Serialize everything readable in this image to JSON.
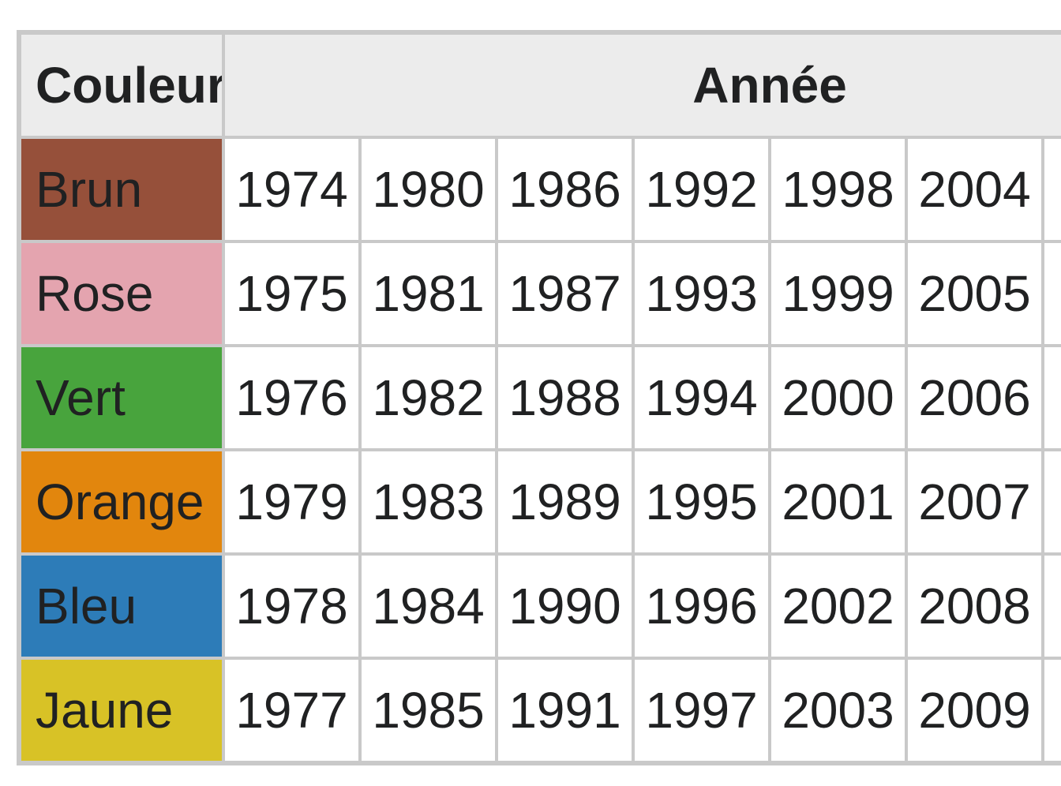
{
  "table": {
    "header": {
      "color_label": "Couleur",
      "year_label": "Année"
    },
    "rows": [
      {
        "name": "Brun",
        "color": "#96503a",
        "years": [
          "1974",
          "1980",
          "1986",
          "1992",
          "1998",
          "2004",
          "",
          ""
        ]
      },
      {
        "name": "Rose",
        "color": "#e4a4af",
        "years": [
          "1975",
          "1981",
          "1987",
          "1993",
          "1999",
          "2005",
          "",
          ""
        ]
      },
      {
        "name": "Vert",
        "color": "#48a43d",
        "years": [
          "1976",
          "1982",
          "1988",
          "1994",
          "2000",
          "2006",
          "",
          ""
        ]
      },
      {
        "name": "Orange",
        "color": "#e2860d",
        "years": [
          "1979",
          "1983",
          "1989",
          "1995",
          "2001",
          "2007",
          "",
          ""
        ]
      },
      {
        "name": "Bleu",
        "color": "#2d7cb8",
        "years": [
          "1978",
          "1984",
          "1990",
          "1996",
          "2002",
          "2008",
          "",
          ""
        ]
      },
      {
        "name": "Jaune",
        "color": "#d8c226",
        "years": [
          "1977",
          "1985",
          "1991",
          "1997",
          "2003",
          "2009",
          "",
          ""
        ]
      }
    ]
  },
  "colors": {
    "border": "#c9c9c9",
    "header_background": "#ececec",
    "text": "#202122",
    "page_background": "#ffffff"
  },
  "chart_data": {
    "type": "table",
    "title": "",
    "columns": [
      "Couleur",
      "Année",
      "Année",
      "Année",
      "Année",
      "Année",
      "Année"
    ],
    "rows": [
      [
        "Brun",
        1974,
        1980,
        1986,
        1992,
        1998,
        2004
      ],
      [
        "Rose",
        1975,
        1981,
        1987,
        1993,
        1999,
        2005
      ],
      [
        "Vert",
        1976,
        1982,
        1988,
        1994,
        2000,
        2006
      ],
      [
        "Orange",
        1979,
        1983,
        1989,
        1995,
        2001,
        2007
      ],
      [
        "Bleu",
        1978,
        1984,
        1990,
        1996,
        2002,
        2008
      ],
      [
        "Jaune",
        1977,
        1985,
        1991,
        1997,
        2003,
        2009
      ]
    ],
    "row_colors": [
      "#96503a",
      "#e4a4af",
      "#48a43d",
      "#e2860d",
      "#2d7cb8",
      "#d8c226"
    ],
    "notes": "Table cropped at right edge of viewport; a seventh year column is partially visible with no readable values."
  }
}
